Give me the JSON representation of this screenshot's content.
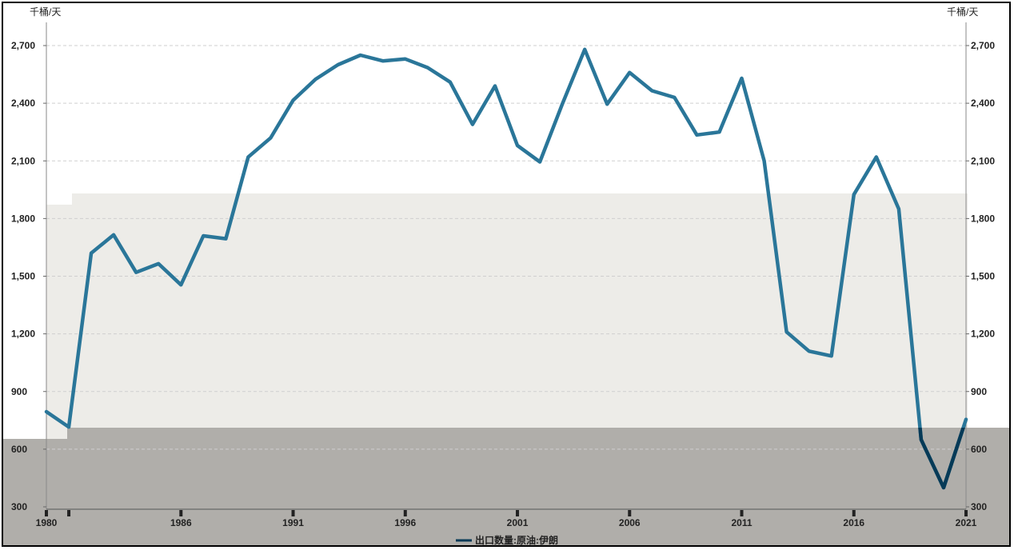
{
  "chart_data": {
    "type": "line",
    "y_unit_left": "千桶/天",
    "y_unit_right": "千桶/天",
    "x_tick_labels": [
      "1980",
      "1986",
      "1991",
      "1996",
      "2001",
      "2006",
      "2011",
      "2016",
      "2021"
    ],
    "y_tick_labels": [
      "300",
      "600",
      "900",
      "1,200",
      "1,500",
      "1,800",
      "2,100",
      "2,400",
      "2,700"
    ],
    "ylim": [
      300,
      2700
    ],
    "xlim": [
      1980,
      2021
    ],
    "grid": true,
    "legend_position": "bottom-center",
    "colors": {
      "line": "#2A7699",
      "line_dark": "#063A57",
      "band_light": "#EDECE8",
      "band_dark": "#B0AEAA"
    },
    "series": [
      {
        "name": "出口数量:原油:伊朗",
        "x": [
          1980,
          1981,
          1982,
          1983,
          1984,
          1985,
          1986,
          1987,
          1988,
          1989,
          1990,
          1991,
          1992,
          1993,
          1994,
          1995,
          1996,
          1997,
          1998,
          1999,
          2000,
          2001,
          2002,
          2003,
          2004,
          2005,
          2006,
          2007,
          2008,
          2009,
          2010,
          2011,
          2012,
          2013,
          2014,
          2015,
          2016,
          2017,
          2018,
          2019,
          2020,
          2021
        ],
        "values": [
          795,
          715,
          1620,
          1715,
          1520,
          1565,
          1455,
          1710,
          1695,
          2120,
          2220,
          2415,
          2525,
          2600,
          2650,
          2620,
          2630,
          2585,
          2510,
          2290,
          2490,
          2180,
          2095,
          2395,
          2680,
          2395,
          2560,
          2465,
          2430,
          2235,
          2250,
          2530,
          2100,
          1210,
          1110,
          1085,
          1925,
          2120,
          1850,
          650,
          400,
          755
        ]
      }
    ]
  }
}
